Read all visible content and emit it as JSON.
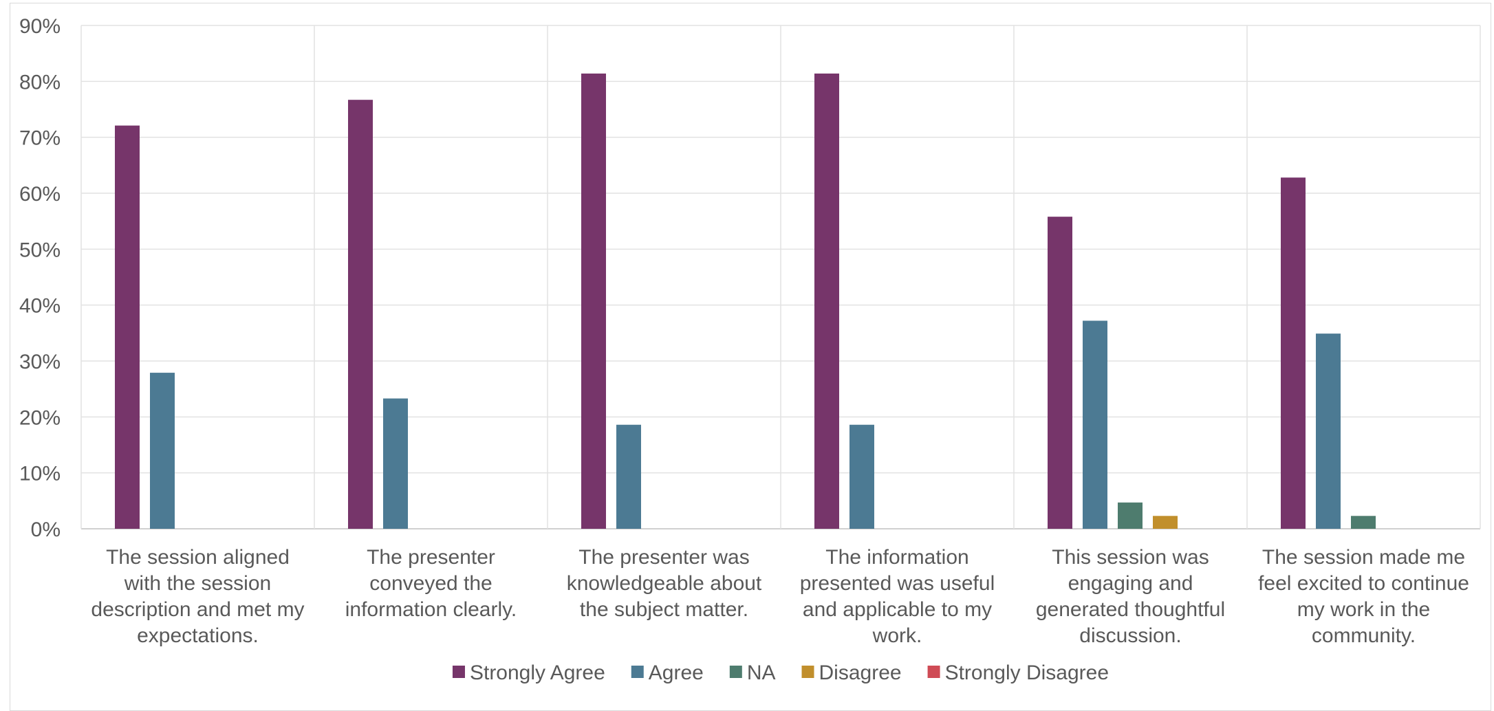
{
  "chart_data": {
    "type": "bar",
    "title": "",
    "xlabel": "",
    "ylabel": "",
    "ylim": [
      0,
      90
    ],
    "y_tick_format": "percent",
    "y_ticks": [
      "0%",
      "10%",
      "20%",
      "30%",
      "40%",
      "50%",
      "60%",
      "70%",
      "80%",
      "90%"
    ],
    "grid": true,
    "legend_position": "bottom",
    "categories": [
      [
        "The session aligned",
        "with the session",
        "description and met my",
        "expectations."
      ],
      [
        "The presenter",
        "conveyed the",
        "information clearly."
      ],
      [
        "The presenter was",
        "knowledgeable about",
        "the subject matter."
      ],
      [
        "The information",
        "presented was useful",
        "and applicable to my",
        "work."
      ],
      [
        "This session was",
        "engaging and",
        "generated thoughtful",
        "discussion."
      ],
      [
        "The session made me",
        "feel excited to continue",
        "my work in the",
        "community."
      ]
    ],
    "series": [
      {
        "name": "Strongly Agree",
        "color": "#76356a",
        "values": [
          72.1,
          76.7,
          81.4,
          81.4,
          55.8,
          62.8
        ]
      },
      {
        "name": "Agree",
        "color": "#4c7a93",
        "values": [
          27.9,
          23.3,
          18.6,
          18.6,
          37.2,
          34.9
        ]
      },
      {
        "name": "NA",
        "color": "#4e7c6e",
        "values": [
          0,
          0,
          0,
          0,
          4.7,
          2.3
        ]
      },
      {
        "name": "Disagree",
        "color": "#c18f2c",
        "values": [
          0,
          0,
          0,
          0,
          2.3,
          0
        ]
      },
      {
        "name": "Strongly Disagree",
        "color": "#cf4b55",
        "values": [
          0,
          0,
          0,
          0,
          0,
          0
        ]
      }
    ]
  }
}
